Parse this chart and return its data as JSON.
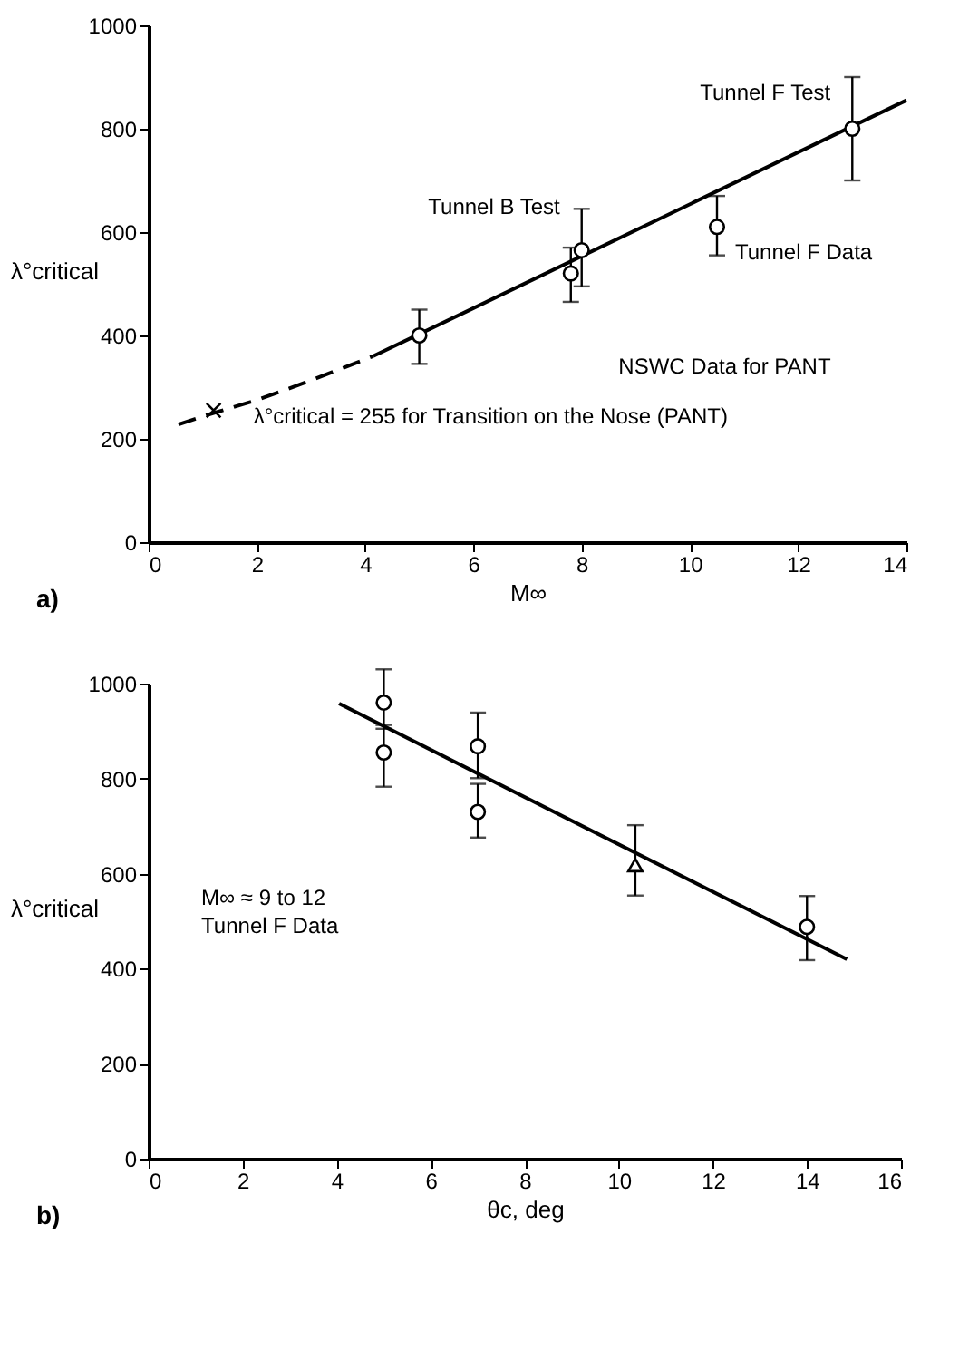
{
  "chart_data": [
    {
      "type": "scatter",
      "title": "a)",
      "xlabel": "M∞",
      "ylabel": "λ°critical",
      "xlim": [
        0,
        14
      ],
      "ylim": [
        0,
        1000
      ],
      "xticks": [
        0,
        2,
        4,
        6,
        8,
        10,
        12,
        14
      ],
      "yticks": [
        0,
        200,
        400,
        600,
        800,
        1000
      ],
      "grid": false,
      "series": [
        {
          "type": "line",
          "color": "#000000",
          "line_style": "dashed",
          "marker": "none",
          "x": [
            0.55,
            1.2,
            2,
            3,
            4.15
          ],
          "values": [
            228,
            250,
            275,
            313,
            360
          ]
        },
        {
          "type": "line",
          "color": "#000000",
          "line_style": "solid",
          "marker": "none",
          "x": [
            4.15,
            14
          ],
          "values": [
            360,
            855
          ]
        },
        {
          "type": "scatter",
          "color": "#000000",
          "marker": "circle",
          "x": [
            5,
            7.8,
            8,
            10.5,
            13
          ],
          "values": [
            400,
            520,
            565,
            610,
            800
          ],
          "errors": [
            [
              345,
              450
            ],
            [
              465,
              570
            ],
            [
              495,
              645
            ],
            [
              555,
              670
            ],
            [
              700,
              900
            ]
          ]
        },
        {
          "type": "scatter",
          "color": "#000000",
          "marker": "cross",
          "x": [
            1.2
          ],
          "values": [
            255
          ]
        }
      ],
      "annotations": [
        {
          "text": "Tunnel F Test",
          "x": 13,
          "y": 800
        },
        {
          "text": "Tunnel B Test",
          "x": 8,
          "y": 565
        },
        {
          "text": "Tunnel F Data",
          "x": 10.5,
          "y": 610
        },
        "NSWC Data for PANT",
        {
          "text": "λ°critical = 255 for Transition on the Nose (PANT)",
          "x": 1.2,
          "y": 255
        }
      ]
    },
    {
      "type": "scatter",
      "title": "b)",
      "xlabel": "θc, deg",
      "ylabel": "λ°critical",
      "xlim": [
        0,
        16
      ],
      "ylim": [
        0,
        1000
      ],
      "xticks": [
        0,
        2,
        4,
        6,
        8,
        10,
        12,
        14,
        16
      ],
      "yticks": [
        0,
        200,
        400,
        600,
        800,
        1000
      ],
      "grid": false,
      "series": [
        {
          "type": "line",
          "color": "#000000",
          "line_style": "solid",
          "marker": "none",
          "x": [
            4.05,
            14.85
          ],
          "values": [
            958,
            420
          ]
        },
        {
          "type": "scatter",
          "color": "#000000",
          "marker": "circle",
          "x": [
            5,
            5,
            7,
            7,
            14
          ],
          "values": [
            960,
            855,
            868,
            730,
            488
          ],
          "errors": [
            [
              905,
              1030
            ],
            [
              783,
              913
            ],
            [
              801,
              939
            ],
            [
              676,
              789
            ],
            [
              418,
              553
            ]
          ]
        },
        {
          "type": "scatter",
          "color": "#000000",
          "marker": "triangle",
          "x": [
            10.35
          ],
          "values": [
            618
          ],
          "errors": [
            [
              554,
              702
            ]
          ]
        }
      ],
      "annotations": [
        "M∞ ≈ 9 to 12",
        "Tunnel F Data"
      ]
    }
  ]
}
